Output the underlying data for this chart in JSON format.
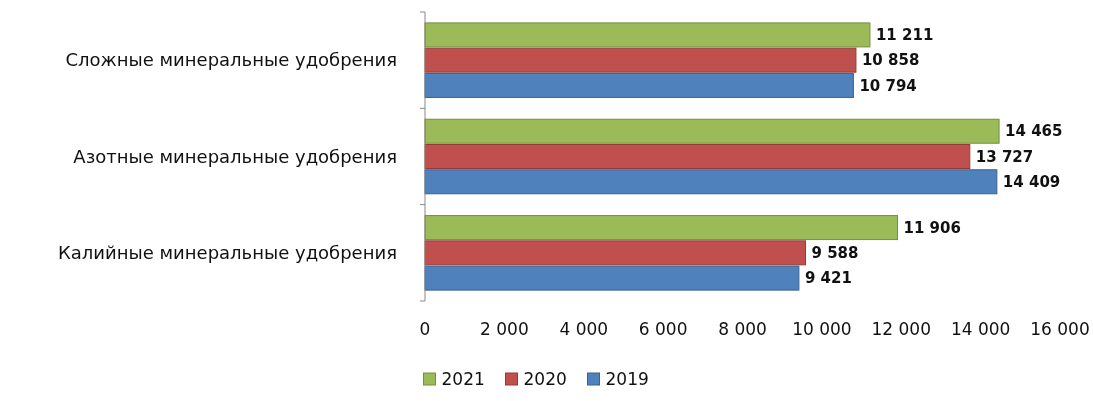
{
  "chart_data": {
    "type": "bar",
    "orientation": "horizontal",
    "categories": [
      "Сложные минеральные удобрения",
      "Азотные минеральные удобрения",
      "Калийные минеральные удобрения"
    ],
    "series": [
      {
        "name": "2021",
        "color": "#9bbb59",
        "values": [
          11211,
          14465,
          11906
        ],
        "value_labels": [
          "11 211",
          "14 465",
          "11 906"
        ]
      },
      {
        "name": "2020",
        "color": "#c0504d",
        "values": [
          10858,
          13727,
          9588
        ],
        "value_labels": [
          "10 858",
          "13 727",
          "9 588"
        ]
      },
      {
        "name": "2019",
        "color": "#4f81bd",
        "values": [
          10794,
          14409,
          9421
        ],
        "value_labels": [
          "10 794",
          "14 409",
          "9 421"
        ]
      }
    ],
    "xlim": [
      0,
      16000
    ],
    "xticks": [
      0,
      {
        "value": 2000,
        "label": "2 000"
      },
      {
        "value": 4000,
        "label": "4 000"
      },
      {
        "value": 6000,
        "label": "6 000"
      },
      {
        "value": 8000,
        "label": "8 000"
      },
      {
        "value": 10000,
        "label": "10 000"
      },
      {
        "value": 12000,
        "label": "12 000"
      },
      {
        "value": 14000,
        "label": "14 000"
      },
      {
        "value": 16000,
        "label": "16 000"
      }
    ],
    "grid": false,
    "legend": "bottom"
  }
}
